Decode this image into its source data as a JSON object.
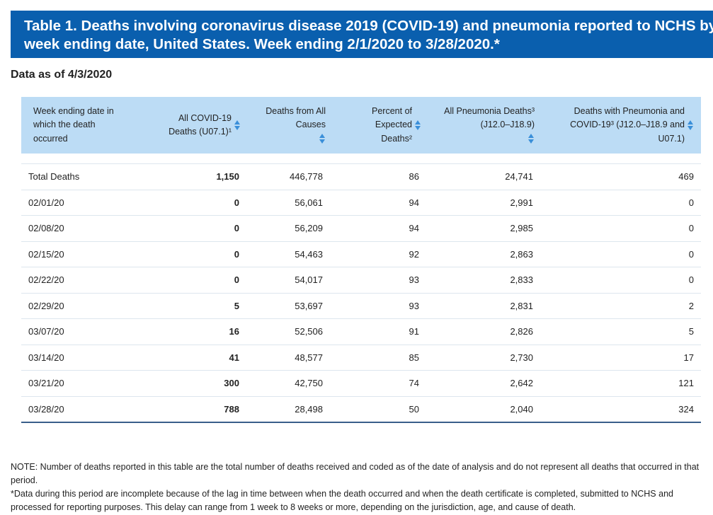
{
  "header": {
    "title": "Table 1. Deaths involving coronavirus disease 2019 (COVID-19) and pneumonia reported to NCHS by week ending date, United States. Week ending 2/1/2020 to 3/28/2020.*",
    "data_as_of": "Data as of 4/3/2020"
  },
  "table": {
    "columns": [
      "Week ending date in which the death occurred",
      "All COVID-19 Deaths (U07.1)¹",
      "Deaths from All Causes",
      "Percent of Expected Deaths²",
      "All Pneumonia Deaths³ (J12.0–J18.9)",
      "Deaths with Pneumonia and COVID-19³ (J12.0–J18.9 and U07.1)"
    ],
    "rows": [
      [
        "Total Deaths",
        "1,150",
        "446,778",
        "86",
        "24,741",
        "469"
      ],
      [
        "02/01/20",
        "0",
        "56,061",
        "94",
        "2,991",
        "0"
      ],
      [
        "02/08/20",
        "0",
        "56,209",
        "94",
        "2,985",
        "0"
      ],
      [
        "02/15/20",
        "0",
        "54,463",
        "92",
        "2,863",
        "0"
      ],
      [
        "02/22/20",
        "0",
        "54,017",
        "93",
        "2,833",
        "0"
      ],
      [
        "02/29/20",
        "5",
        "53,697",
        "93",
        "2,831",
        "2"
      ],
      [
        "03/07/20",
        "16",
        "52,506",
        "91",
        "2,826",
        "5"
      ],
      [
        "03/14/20",
        "41",
        "48,577",
        "85",
        "2,730",
        "17"
      ],
      [
        "03/21/20",
        "300",
        "42,750",
        "74",
        "2,642",
        "121"
      ],
      [
        "03/28/20",
        "788",
        "28,498",
        "50",
        "2,040",
        "324"
      ]
    ]
  },
  "notes": [
    "NOTE: Number of deaths reported in this table are the total number of deaths received and coded as of the date of analysis and do not represent all deaths that occurred in that period.",
    "*Data during this period are incomplete because of the lag in time between when the death occurred and when the death certificate is completed, submitted to NCHS and processed for reporting purposes. This delay can range from 1 week to 8 weeks or more, depending on the jurisdiction, age, and cause of death."
  ]
}
